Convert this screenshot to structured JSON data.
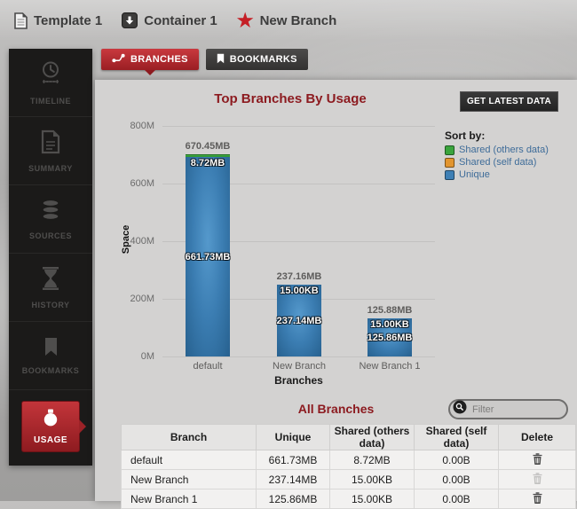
{
  "colors": {
    "accent_red": "#b2292e",
    "title_maroon": "#8c1a1f",
    "panel_gray": "#d3d2d1",
    "sidebar_black": "#1b1a19"
  },
  "breadcrumb": {
    "items": [
      {
        "label": "Template 1",
        "icon": "template-document-icon"
      },
      {
        "label": "Container 1",
        "icon": "container-icon"
      },
      {
        "label": "New Branch",
        "icon": "star-icon"
      }
    ]
  },
  "tabs": [
    {
      "label": "BRANCHES",
      "icon": "branch-icon",
      "active": true
    },
    {
      "label": "BOOKMARKS",
      "icon": "bookmark-icon",
      "active": false
    }
  ],
  "sidebar": {
    "items": [
      {
        "label": "TIMELINE",
        "icon": "clock-icon",
        "active": false
      },
      {
        "label": "SUMMARY",
        "icon": "summary-document-icon",
        "active": false
      },
      {
        "label": "SOURCES",
        "icon": "database-icon",
        "active": false
      },
      {
        "label": "HISTORY",
        "icon": "hourglass-icon",
        "active": false
      },
      {
        "label": "BOOKMARKS",
        "icon": "bookmark-icon",
        "active": false
      },
      {
        "label": "USAGE",
        "icon": "usage-weight-icon",
        "active": true
      }
    ]
  },
  "chart": {
    "title": "Top Branches By Usage",
    "get_latest_label": "GET LATEST DATA"
  },
  "chart_data": {
    "type": "bar",
    "stacked": true,
    "title": "Top Branches By Usage",
    "xlabel": "Branches",
    "ylabel": "Space",
    "ylim": [
      0,
      800
    ],
    "y_ticks": [
      "800M",
      "600M",
      "400M",
      "200M",
      "0M"
    ],
    "axis_unit": "M = millions of bytes",
    "grid": true,
    "legend_title": "Sort by:",
    "legend_position": "right",
    "categories": [
      "default",
      "New Branch",
      "New Branch 1"
    ],
    "bar_totals": [
      "670.45MB",
      "237.16MB",
      "125.88MB"
    ],
    "series": [
      {
        "name": "Shared (others data)",
        "color": "#3aa43c",
        "labels": [
          "8.72MB",
          "15.00KB",
          "15.00KB"
        ],
        "values_m": [
          9.14,
          0.02,
          0.02
        ]
      },
      {
        "name": "Shared (self data)",
        "color": "#e2952e",
        "labels": [
          "0.00B",
          "0.00B",
          "0.00B"
        ],
        "values_m": [
          0,
          0,
          0
        ]
      },
      {
        "name": "Unique",
        "color": "#3f80b5",
        "labels": [
          "661.73MB",
          "237.14MB",
          "125.86MB"
        ],
        "values_m": [
          693.9,
          248.7,
          132.0
        ]
      }
    ]
  },
  "table": {
    "title": "All Branches",
    "filter_placeholder": "Filter",
    "columns": [
      "Branch",
      "Unique",
      "Shared (others data)",
      "Shared (self data)",
      "Delete"
    ],
    "rows": [
      {
        "branch": "default",
        "unique": "661.73MB",
        "shared_others": "8.72MB",
        "shared_self": "0.00B",
        "delete_enabled": true
      },
      {
        "branch": "New Branch",
        "unique": "237.14MB",
        "shared_others": "15.00KB",
        "shared_self": "0.00B",
        "delete_enabled": false
      },
      {
        "branch": "New Branch 1",
        "unique": "125.86MB",
        "shared_others": "15.00KB",
        "shared_self": "0.00B",
        "delete_enabled": true
      }
    ]
  }
}
